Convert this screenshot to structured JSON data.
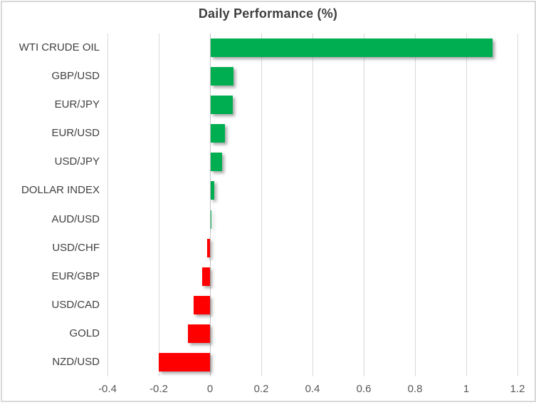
{
  "chart_data": {
    "type": "bar",
    "orientation": "horizontal",
    "title": "Daily Performance (%)",
    "categories": [
      "WTI CRUDE OIL",
      "GBP/USD",
      "EUR/JPY",
      "EUR/USD",
      "USD/JPY",
      "DOLLAR INDEX",
      "AUD/USD",
      "USD/CHF",
      "EUR/GBP",
      "USD/CAD",
      "GOLD",
      "NZD/USD"
    ],
    "values": [
      1.1,
      0.09,
      0.085,
      0.055,
      0.045,
      0.015,
      0.002,
      -0.01,
      -0.03,
      -0.065,
      -0.085,
      -0.2
    ],
    "xlabel": "",
    "ylabel": "",
    "xlim": [
      -0.4,
      1.2
    ],
    "x_ticks": [
      -0.4,
      -0.2,
      0,
      0.2,
      0.4,
      0.6,
      0.8,
      1,
      1.2
    ],
    "x_tick_labels": [
      "-0.4",
      "-0.2",
      "0",
      "0.2",
      "0.4",
      "0.6",
      "0.8",
      "1",
      "1.2"
    ],
    "grid": true,
    "legend": false,
    "colors": {
      "positive": "#00ae52",
      "negative": "#ff0000",
      "gridline": "#d9d9d9",
      "zero_line": "#c3c3c3",
      "border": "#d9d9d9",
      "title_text": "#3f3f3f",
      "category_text": "#404040",
      "tick_text": "#595959",
      "background": "#ffffff"
    }
  }
}
